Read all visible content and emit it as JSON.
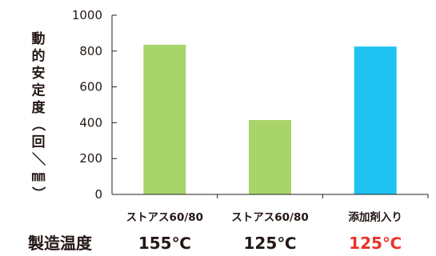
{
  "chart_data": {
    "type": "bar",
    "ylabel": "動的安定度（回／㎜）",
    "ylim": [
      0,
      1000
    ],
    "yticks": [
      0,
      200,
      400,
      600,
      800,
      1000
    ],
    "categories": [
      "ストアス60/80",
      "ストアス60/80",
      "添加剤入り"
    ],
    "values": [
      835,
      415,
      825
    ],
    "bar_colors": [
      "#a9d46a",
      "#a9d46a",
      "#1ec2f1"
    ],
    "temperature_row": {
      "label": "製造温度",
      "values": [
        "155℃",
        "125℃",
        "125℃"
      ],
      "colors": [
        "#231815",
        "#231815",
        "#e8332a"
      ]
    },
    "grid": false
  }
}
